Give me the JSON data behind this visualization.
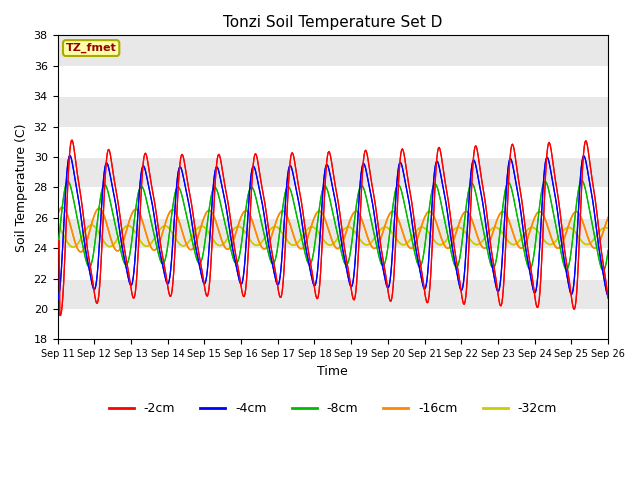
{
  "title": "Tonzi Soil Temperature Set D",
  "xlabel": "Time",
  "ylabel": "Soil Temperature (C)",
  "ylim": [
    18,
    38
  ],
  "yticks": [
    18,
    20,
    22,
    24,
    26,
    28,
    30,
    32,
    34,
    36,
    38
  ],
  "xtick_labels": [
    "Sep 11",
    "Sep 12",
    "Sep 13",
    "Sep 14",
    "Sep 15",
    "Sep 16",
    "Sep 17",
    "Sep 18",
    "Sep 19",
    "Sep 20",
    "Sep 21",
    "Sep 22",
    "Sep 23",
    "Sep 24",
    "Sep 25",
    "Sep 26"
  ],
  "annotation_text": "TZ_fmet",
  "annotation_color": "#990000",
  "annotation_box_color": "#ffffaa",
  "annotation_edge_color": "#aaaa00",
  "colors": {
    "-2cm": "#ff0000",
    "-4cm": "#0000ff",
    "-8cm": "#00bb00",
    "-16cm": "#ff8800",
    "-32cm": "#cccc00"
  },
  "legend_labels": [
    "-2cm",
    "-4cm",
    "-8cm",
    "-16cm",
    "-32cm"
  ],
  "bg_color": "#e8e8e8",
  "grid_color": "#ffffff"
}
